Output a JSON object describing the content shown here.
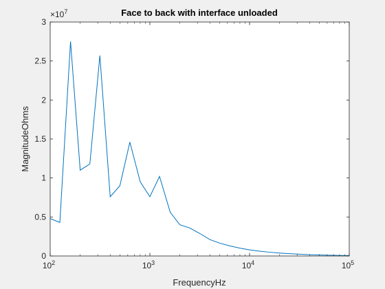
{
  "chart_data": {
    "type": "line",
    "title": "Face to back with interface unloaded",
    "xlabel": "FrequencyHz",
    "ylabel": "MagnitudeOhms",
    "x_scale": "log",
    "xlim": [
      100,
      100000
    ],
    "ylim": [
      0,
      30000000
    ],
    "y_exponent_label": "10^7",
    "x_ticks": [
      {
        "value": 100,
        "base": "10",
        "exp": "2"
      },
      {
        "value": 1000,
        "base": "10",
        "exp": "3"
      },
      {
        "value": 10000,
        "base": "10",
        "exp": "4"
      },
      {
        "value": 100000,
        "base": "10",
        "exp": "5"
      }
    ],
    "y_ticks": [
      {
        "value": 0,
        "label": "0"
      },
      {
        "value": 5000000,
        "label": "0.5"
      },
      {
        "value": 10000000,
        "label": "1"
      },
      {
        "value": 15000000,
        "label": "1.5"
      },
      {
        "value": 20000000,
        "label": "2"
      },
      {
        "value": 25000000,
        "label": "2.5"
      },
      {
        "value": 30000000,
        "label": "3"
      }
    ],
    "grid": false,
    "series": [
      {
        "color": "#0072bd",
        "x": [
          100,
          125,
          160,
          200,
          250,
          315,
          400,
          500,
          630,
          800,
          1000,
          1250,
          1600,
          2000,
          2500,
          3150,
          4000,
          5000,
          6300,
          8000,
          10000,
          12500,
          16000,
          20000,
          25000,
          31500,
          40000,
          50000,
          63000,
          80000,
          100000
        ],
        "y": [
          4800000,
          4300000,
          27500000,
          11000000,
          11800000,
          25700000,
          7600000,
          9000000,
          14600000,
          9500000,
          7600000,
          10200000,
          5600000,
          4000000,
          3600000,
          2900000,
          2100000,
          1650000,
          1300000,
          1000000,
          780000,
          620000,
          480000,
          380000,
          300000,
          230000,
          170000,
          130000,
          100000,
          70000,
          50000
        ]
      }
    ]
  }
}
